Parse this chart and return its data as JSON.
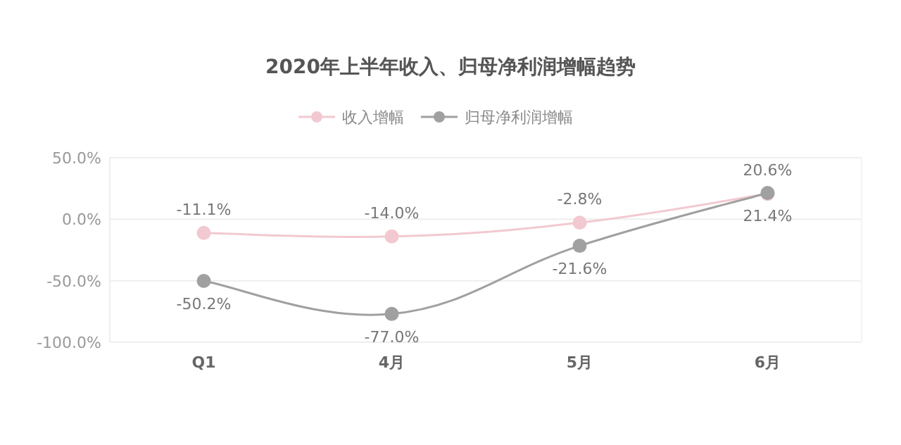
{
  "chart_data": {
    "type": "line",
    "title": "2020年上半年收入、归母净利润增幅趋势",
    "categories": [
      "Q1",
      "4月",
      "5月",
      "6月"
    ],
    "series": [
      {
        "name": "收入增幅",
        "color": "#f2c9d0",
        "values": [
          -11.1,
          -14.0,
          -2.8,
          20.6
        ],
        "value_labels": [
          "-11.1%",
          "-14.0%",
          "-2.8%",
          "20.6%"
        ]
      },
      {
        "name": "归母净利润增幅",
        "color": "#a0a0a0",
        "values": [
          -50.2,
          -77.0,
          -21.6,
          21.4
        ],
        "value_labels": [
          "-50.2%",
          "-77.0%",
          "-21.6%",
          "21.4%"
        ]
      }
    ],
    "ylim": [
      -100,
      50
    ],
    "yticks": [
      {
        "value": 50,
        "label": "50.0%"
      },
      {
        "value": 0,
        "label": "0.0%"
      },
      {
        "value": -50,
        "label": "-50.0%"
      },
      {
        "value": -100,
        "label": "-100.0%"
      }
    ],
    "grid": "y",
    "legend": "top",
    "marker": "circle",
    "line_style": "solid"
  }
}
